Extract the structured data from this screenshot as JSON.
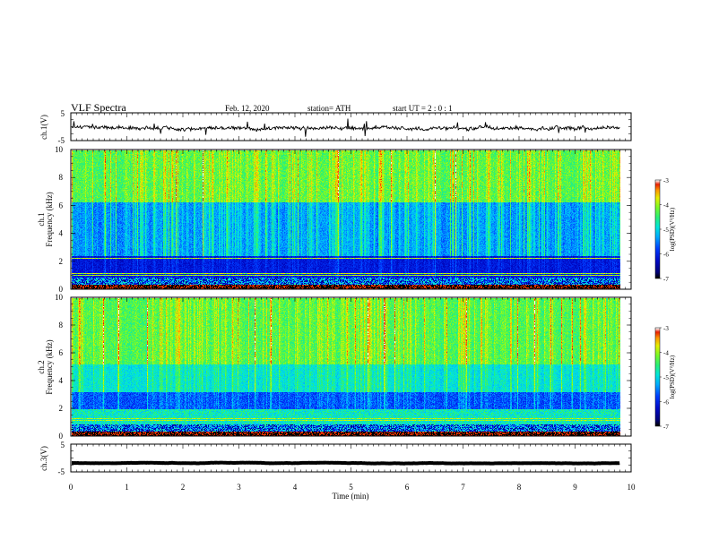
{
  "header": {
    "title": "VLF  Spectra",
    "date": "Feb. 12, 2020",
    "station": "station= ATH",
    "start": "start  UT  =   2  : 0   : 1"
  },
  "chart_data": [
    {
      "type": "line",
      "panel": "ch1-waveform",
      "ylabel": "ch.1(V)",
      "ylim": [
        -5,
        5
      ],
      "ytick_labels": [
        "5",
        "-5"
      ],
      "xlim": [
        0,
        10
      ],
      "data_extent": [
        0,
        9.8
      ],
      "baseline": -0.3,
      "amplitude": 0.9
    },
    {
      "type": "heatmap",
      "panel": "ch1-spectrogram",
      "ylabel_channel": "ch.1",
      "ylabel": "Frequency  (kHz)",
      "ylim": [
        0,
        10
      ],
      "ytick_labels": [
        "0",
        "2",
        "4",
        "6",
        "8",
        "10"
      ],
      "xlim": [
        0,
        10
      ],
      "data_extent": [
        0,
        9.8
      ],
      "colorbar": {
        "label": "log(PSD)(V²/Hz)",
        "range": [
          -7,
          -3
        ],
        "tick_labels": [
          "-3",
          "-4",
          "-5",
          "-6",
          "-7"
        ]
      }
    },
    {
      "type": "heatmap",
      "panel": "ch2-spectrogram",
      "ylabel_channel": "ch.2",
      "ylabel": "Frequency  (kHz)",
      "ylim": [
        0,
        10
      ],
      "ytick_labels": [
        "0",
        "2",
        "4",
        "6",
        "8",
        "10"
      ],
      "xlim": [
        0,
        10
      ],
      "data_extent": [
        0,
        9.8
      ],
      "colorbar": {
        "label": "log(PSD)(V²/Hz)",
        "range": [
          -7,
          -3
        ],
        "tick_labels": [
          "-3",
          "-4",
          "-5",
          "-6",
          "-7"
        ]
      }
    },
    {
      "type": "line",
      "panel": "ch3-waveform",
      "ylabel": "ch.3(V)",
      "ylim": [
        -5,
        5
      ],
      "ytick_labels": [
        "5",
        "-5"
      ],
      "xlim": [
        0,
        10
      ],
      "data_extent": [
        0,
        9.8
      ],
      "baseline": -1.8,
      "amplitude": 0.15
    }
  ],
  "xaxis": {
    "label": "Time  (min)",
    "tick_labels": [
      "0",
      "1",
      "2",
      "3",
      "4",
      "5",
      "6",
      "7",
      "8",
      "9",
      "10"
    ]
  }
}
